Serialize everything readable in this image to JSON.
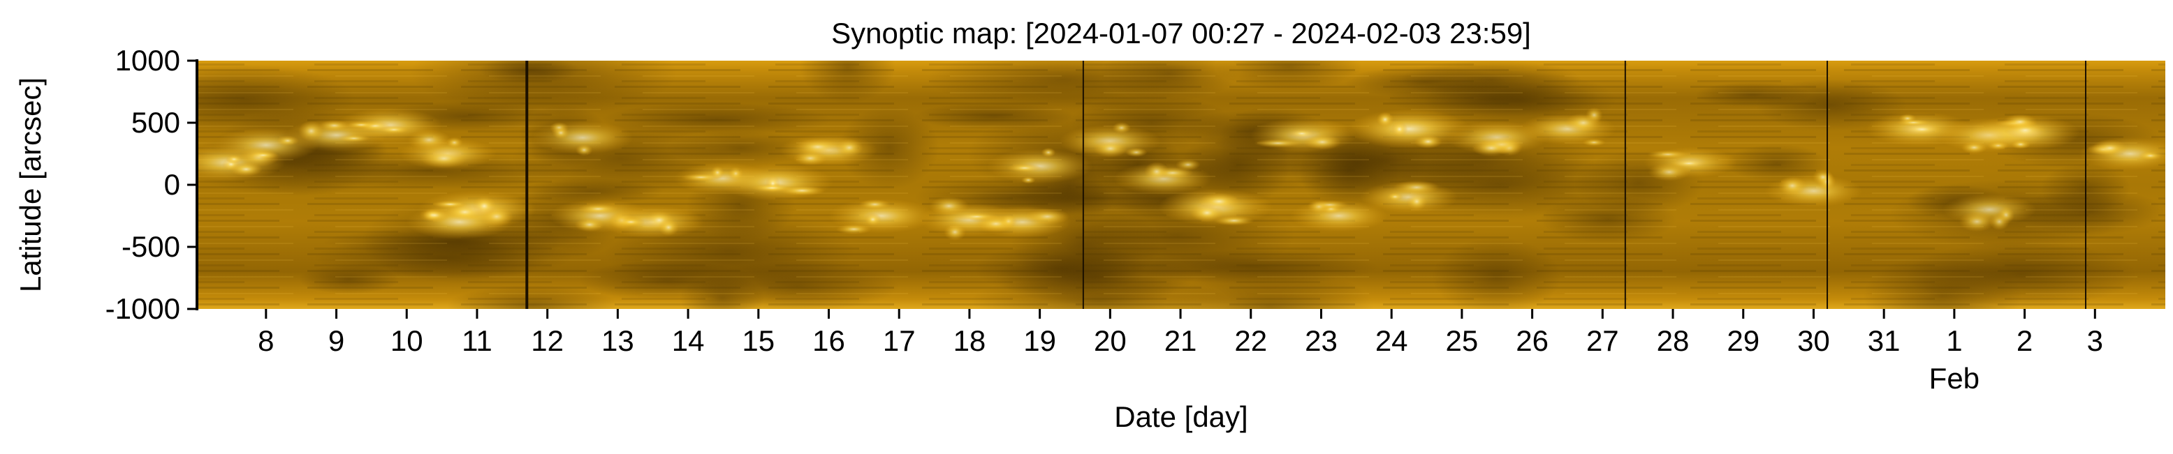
{
  "chart_data": {
    "type": "heatmap",
    "title": "Synoptic map: [2024-01-07 00:27 - 2024-02-03 23:59]",
    "xlabel": "Date [day]",
    "ylabel": "Latitude [arcsec]",
    "colormap": "golden (SDO/AIA 171-style)",
    "colors": {
      "dark": "#5a3d02",
      "mid": "#a87605",
      "bright": "#ffcf3a",
      "highlight": "#fff4c0"
    },
    "xlim": [
      "2024-01-07 00:27",
      "2024-02-03 23:59"
    ],
    "ylim": [
      -1000,
      1000
    ],
    "y_ticks": [
      1000,
      500,
      0,
      -500,
      -1000
    ],
    "y_tick_labels": [
      "1000",
      "500",
      "0",
      "-500",
      "-1000"
    ],
    "x_ticks": [
      {
        "date": "2024-01-08",
        "label": "8"
      },
      {
        "date": "2024-01-09",
        "label": "9"
      },
      {
        "date": "2024-01-10",
        "label": "10"
      },
      {
        "date": "2024-01-11",
        "label": "11"
      },
      {
        "date": "2024-01-12",
        "label": "12"
      },
      {
        "date": "2024-01-13",
        "label": "13"
      },
      {
        "date": "2024-01-14",
        "label": "14"
      },
      {
        "date": "2024-01-15",
        "label": "15"
      },
      {
        "date": "2024-01-16",
        "label": "16"
      },
      {
        "date": "2024-01-17",
        "label": "17"
      },
      {
        "date": "2024-01-18",
        "label": "18"
      },
      {
        "date": "2024-01-19",
        "label": "19"
      },
      {
        "date": "2024-01-20",
        "label": "20"
      },
      {
        "date": "2024-01-21",
        "label": "21"
      },
      {
        "date": "2024-01-22",
        "label": "22"
      },
      {
        "date": "2024-01-23",
        "label": "23"
      },
      {
        "date": "2024-01-24",
        "label": "24"
      },
      {
        "date": "2024-01-25",
        "label": "25"
      },
      {
        "date": "2024-01-26",
        "label": "26"
      },
      {
        "date": "2024-01-27",
        "label": "27"
      },
      {
        "date": "2024-01-28",
        "label": "28"
      },
      {
        "date": "2024-01-29",
        "label": "29"
      },
      {
        "date": "2024-01-30",
        "label": "30"
      },
      {
        "date": "2024-01-31",
        "label": "31"
      },
      {
        "date": "2024-02-01",
        "label": "1"
      },
      {
        "date": "2024-02-02",
        "label": "2"
      },
      {
        "date": "2024-02-03",
        "label": "3"
      }
    ],
    "month_label": {
      "date": "2024-02-01",
      "label": "Feb"
    },
    "data_gaps": [
      {
        "date": "2024-01-07 00:27",
        "heavy": true
      },
      {
        "date": "2024-01-11 17:00",
        "heavy": true
      },
      {
        "date": "2024-01-19 14:50",
        "heavy": false
      },
      {
        "date": "2024-01-27 07:45",
        "heavy": false
      },
      {
        "date": "2024-01-30 04:40",
        "heavy": false
      },
      {
        "date": "2024-02-02 20:50",
        "heavy": false
      }
    ],
    "bright_regions": [
      {
        "date": "2024-01-07 11:00",
        "lat": 180,
        "intensity": 0.7
      },
      {
        "date": "2024-01-08 00:00",
        "lat": 320,
        "intensity": 0.6
      },
      {
        "date": "2024-01-09 00:00",
        "lat": 400,
        "intensity": 0.55
      },
      {
        "date": "2024-01-09 18:00",
        "lat": 480,
        "intensity": 0.6
      },
      {
        "date": "2024-01-10 14:00",
        "lat": 250,
        "intensity": 0.5
      },
      {
        "date": "2024-01-11 00:00",
        "lat": -200,
        "intensity": 0.75
      },
      {
        "date": "2024-01-10 18:00",
        "lat": -300,
        "intensity": 0.6
      },
      {
        "date": "2024-01-12 12:00",
        "lat": 380,
        "intensity": 0.55
      },
      {
        "date": "2024-01-12 18:00",
        "lat": -250,
        "intensity": 0.55
      },
      {
        "date": "2024-01-13 12:00",
        "lat": -300,
        "intensity": 0.55
      },
      {
        "date": "2024-01-14 12:00",
        "lat": 50,
        "intensity": 0.5
      },
      {
        "date": "2024-01-15 06:00",
        "lat": 20,
        "intensity": 0.7
      },
      {
        "date": "2024-01-16 00:00",
        "lat": 280,
        "intensity": 0.5
      },
      {
        "date": "2024-01-16 18:00",
        "lat": -250,
        "intensity": 0.6
      },
      {
        "date": "2024-01-18 00:00",
        "lat": -280,
        "intensity": 0.55
      },
      {
        "date": "2024-01-19 00:00",
        "lat": 150,
        "intensity": 0.6
      },
      {
        "date": "2024-01-18 18:00",
        "lat": -300,
        "intensity": 0.5
      },
      {
        "date": "2024-01-20 00:00",
        "lat": 350,
        "intensity": 0.55
      },
      {
        "date": "2024-01-20 18:00",
        "lat": 50,
        "intensity": 0.5
      },
      {
        "date": "2024-01-21 12:00",
        "lat": -180,
        "intensity": 0.7
      },
      {
        "date": "2024-01-22 18:00",
        "lat": 400,
        "intensity": 0.6
      },
      {
        "date": "2024-01-23 06:00",
        "lat": -250,
        "intensity": 0.5
      },
      {
        "date": "2024-01-24 06:00",
        "lat": 450,
        "intensity": 0.8
      },
      {
        "date": "2024-01-24 06:00",
        "lat": -100,
        "intensity": 0.5
      },
      {
        "date": "2024-01-25 12:00",
        "lat": 380,
        "intensity": 0.55
      },
      {
        "date": "2024-01-26 12:00",
        "lat": 450,
        "intensity": 0.5
      },
      {
        "date": "2024-01-28 06:00",
        "lat": 180,
        "intensity": 0.45
      },
      {
        "date": "2024-01-30 00:00",
        "lat": -50,
        "intensity": 0.5
      },
      {
        "date": "2024-01-31 12:00",
        "lat": 450,
        "intensity": 0.6
      },
      {
        "date": "2024-02-01 12:00",
        "lat": 400,
        "intensity": 0.6
      },
      {
        "date": "2024-02-02 00:00",
        "lat": 420,
        "intensity": 0.65
      },
      {
        "date": "2024-02-01 12:00",
        "lat": -200,
        "intensity": 0.45
      },
      {
        "date": "2024-02-03 12:00",
        "lat": 250,
        "intensity": 0.55
      }
    ]
  }
}
